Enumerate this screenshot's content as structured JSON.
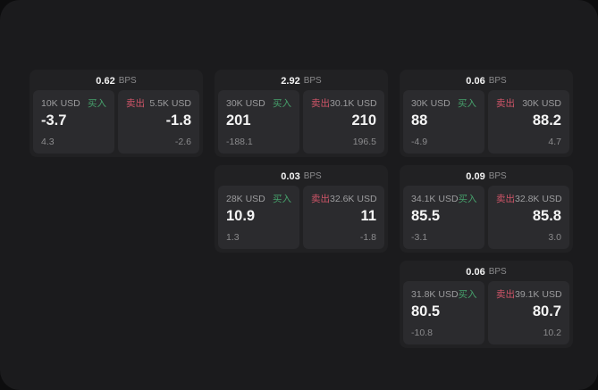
{
  "labels": {
    "bps_unit": "BPS",
    "buy": "买入",
    "sell": "卖出"
  },
  "colors": {
    "window_bg": "#1b1b1d",
    "card_bg": "#212123",
    "panel_bg": "#2b2b2e",
    "buy_accent": "#46a06b",
    "sell_accent": "#cf5568",
    "value_text": "#f4f4f4",
    "muted_text": "#8b8b8d"
  },
  "cards": [
    {
      "bps": "0.62",
      "buy": {
        "amount": "10K USD",
        "price": "-3.7",
        "delta": "4.3"
      },
      "sell": {
        "amount": "5.5K USD",
        "price": "-1.8",
        "delta": "-2.6"
      }
    },
    {
      "bps": "2.92",
      "buy": {
        "amount": "30K USD",
        "price": "201",
        "delta": "-188.1"
      },
      "sell": {
        "amount": "30.1K USD",
        "price": "210",
        "delta": "196.5"
      }
    },
    {
      "bps": "0.06",
      "buy": {
        "amount": "30K USD",
        "price": "88",
        "delta": "-4.9"
      },
      "sell": {
        "amount": "30K USD",
        "price": "88.2",
        "delta": "4.7"
      }
    },
    {
      "bps": "0.03",
      "buy": {
        "amount": "28K USD",
        "price": "10.9",
        "delta": "1.3"
      },
      "sell": {
        "amount": "32.6K USD",
        "price": "11",
        "delta": "-1.8"
      }
    },
    {
      "bps": "0.09",
      "buy": {
        "amount": "34.1K USD",
        "price": "85.5",
        "delta": "-3.1"
      },
      "sell": {
        "amount": "32.8K USD",
        "price": "85.8",
        "delta": "3.0"
      }
    },
    {
      "bps": "0.06",
      "buy": {
        "amount": "31.8K USD",
        "price": "80.5",
        "delta": "-10.8"
      },
      "sell": {
        "amount": "39.1K USD",
        "price": "80.7",
        "delta": "10.2"
      }
    }
  ]
}
